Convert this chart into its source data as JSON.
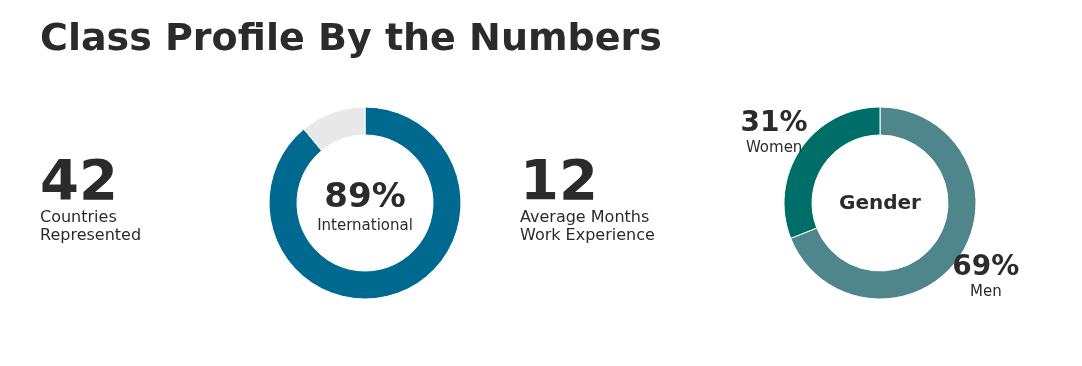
{
  "chart_data": [
    {
      "type": "other",
      "title": "Class Profile By the Numbers",
      "annotations": [
        "42",
        "Countries\nRepresented"
      ]
    },
    {
      "type": "donut",
      "categories": [
        "International",
        null
      ],
      "values": [
        89,
        11
      ],
      "colors": [
        "#006990",
        "#e8e8e8"
      ],
      "value_labels": [
        "89%",
        null
      ]
    },
    {
      "type": "other",
      "annotations": [
        "12",
        "Average Months\nWork Experience"
      ]
    },
    {
      "type": "donut",
      "title": "Gender",
      "categories": [
        "Men",
        "Women"
      ],
      "values": [
        69,
        31
      ],
      "colors": [
        "#4e868c",
        "#006e68"
      ],
      "value_labels": [
        "69%",
        "31%"
      ]
    }
  ]
}
